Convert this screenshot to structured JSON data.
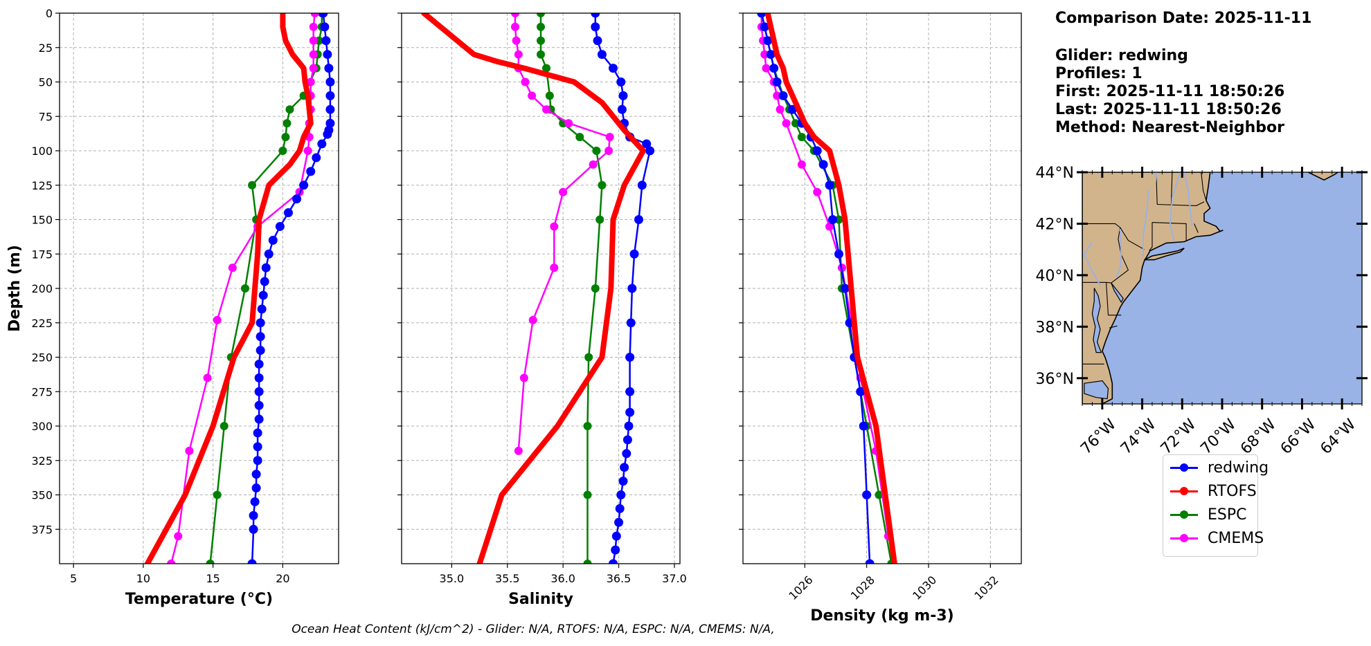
{
  "info": {
    "comparison_date": "Comparison Date: 2025-11-11",
    "glider": "Glider: redwing",
    "profiles": "Profiles: 1",
    "first": "First: 2025-11-11 18:50:26",
    "last": "Last: 2025-11-11 18:50:26",
    "method": "Method: Nearest-Neighbor"
  },
  "footer": "Ocean Heat Content (kJ/cm^2) - Glider: N/A,  RTOFS: N/A,  ESPC: N/A,  CMEMS: N/A,",
  "colors": {
    "redwing": "#0000ff",
    "RTOFS": "#ff0000",
    "ESPC": "#008000",
    "CMEMS": "#ff00ff",
    "land": "#d2b48c",
    "ocean": "#99b3e6",
    "grid": "#b0b0b0"
  },
  "legend": [
    "redwing",
    "RTOFS",
    "ESPC",
    "CMEMS"
  ],
  "map": {
    "lat_labels": [
      "44°N",
      "42°N",
      "40°N",
      "38°N",
      "36°N"
    ],
    "lon_labels": [
      "76°W",
      "74°W",
      "72°W",
      "70°W",
      "68°W",
      "66°W",
      "64°W"
    ],
    "lat_values": [
      44,
      42,
      40,
      38,
      36
    ],
    "lon_values": [
      -76,
      -74,
      -72,
      -70,
      -68,
      -66,
      -64
    ],
    "extent": {
      "lon_min": -77,
      "lon_max": -63,
      "lat_min": 35,
      "lat_max": 44
    }
  },
  "chart_data": [
    {
      "type": "line",
      "xlabel": "Temperature (°C)",
      "ylabel": "Depth (m)",
      "xlim": [
        4,
        24
      ],
      "ylim": [
        400,
        0
      ],
      "xticks": [
        "5",
        "10",
        "15",
        "20"
      ],
      "xtick_values": [
        5,
        10,
        15,
        20
      ],
      "yticks": [
        "0",
        "25",
        "50",
        "75",
        "100",
        "125",
        "150",
        "175",
        "200",
        "225",
        "250",
        "275",
        "300",
        "325",
        "350",
        "375"
      ],
      "ytick_values": [
        0,
        25,
        50,
        75,
        100,
        125,
        150,
        175,
        200,
        225,
        250,
        275,
        300,
        325,
        350,
        375
      ],
      "grid": true,
      "series": [
        {
          "name": "redwing",
          "x": [
            22.9,
            23.0,
            23.1,
            23.2,
            23.3,
            23.4,
            23.4,
            23.4,
            23.4,
            23.3,
            23.2,
            22.8,
            22.4,
            22.0,
            21.5,
            21.0,
            20.4,
            19.8,
            19.3,
            19.0,
            18.8,
            18.7,
            18.6,
            18.5,
            18.4,
            18.4,
            18.4,
            18.3,
            18.3,
            18.3,
            18.3,
            18.3,
            18.2,
            18.2,
            18.2,
            18.1,
            18.1,
            18.0,
            17.9,
            17.9,
            17.8
          ],
          "y": [
            0,
            10,
            20,
            30,
            40,
            50,
            60,
            70,
            80,
            85,
            88,
            95,
            105,
            115,
            125,
            135,
            145,
            155,
            165,
            175,
            185,
            195,
            205,
            215,
            225,
            235,
            245,
            255,
            265,
            275,
            285,
            295,
            305,
            315,
            325,
            335,
            345,
            355,
            365,
            375,
            400
          ]
        },
        {
          "name": "RTOFS",
          "x": [
            20.0,
            20.0,
            20.2,
            20.7,
            21.5,
            21.6,
            21.8,
            21.9,
            22.0,
            21.5,
            21.2,
            20.5,
            19.0,
            18.3,
            18.2,
            18.0,
            17.8,
            16.5,
            15.0,
            13.0,
            10.3
          ],
          "y": [
            0,
            10,
            20,
            30,
            40,
            50,
            60,
            70,
            80,
            90,
            100,
            110,
            125,
            150,
            175,
            200,
            225,
            250,
            300,
            350,
            400
          ]
        },
        {
          "name": "ESPC",
          "x": [
            22.8,
            22.8,
            22.6,
            22.5,
            22.4,
            21.5,
            20.5,
            20.3,
            20.2,
            20.0,
            17.8,
            18.1,
            17.3,
            16.3,
            15.8,
            15.3,
            14.8
          ],
          "y": [
            0,
            10,
            20,
            30,
            40,
            60,
            70,
            80,
            90,
            100,
            125,
            150,
            200,
            250,
            300,
            350,
            400
          ]
        },
        {
          "name": "CMEMS",
          "x": [
            22.3,
            22.2,
            22.2,
            22.2,
            22.2,
            22.0,
            22.0,
            22.0,
            21.9,
            21.9,
            21.8,
            21.2,
            18.2,
            16.4,
            15.3,
            14.6,
            13.3,
            12.5,
            12.0
          ],
          "y": [
            0,
            10,
            20,
            30,
            40,
            50,
            60,
            70,
            80,
            90,
            100,
            130,
            155,
            185,
            223,
            265,
            318,
            380,
            400
          ]
        }
      ]
    },
    {
      "type": "line",
      "xlabel": "Salinity",
      "xlim": [
        34.55,
        37.05
      ],
      "ylim": [
        400,
        0
      ],
      "xticks": [
        "35.0",
        "35.5",
        "36.0",
        "36.5",
        "37.0"
      ],
      "xtick_values": [
        35.0,
        35.5,
        36.0,
        36.5,
        37.0
      ],
      "grid": true,
      "series": [
        {
          "name": "redwing",
          "x": [
            36.29,
            36.29,
            36.31,
            36.35,
            36.45,
            36.52,
            36.54,
            36.53,
            36.55,
            36.6,
            36.75,
            36.78,
            36.71,
            36.68,
            36.64,
            36.62,
            36.61,
            36.6,
            36.6,
            36.6,
            36.59,
            36.58,
            36.57,
            36.55,
            36.54,
            36.52,
            36.51,
            36.5,
            36.48,
            36.47,
            36.45
          ],
          "y": [
            0,
            10,
            20,
            30,
            40,
            50,
            60,
            70,
            80,
            90,
            95,
            100,
            125,
            150,
            175,
            200,
            225,
            250,
            275,
            290,
            300,
            310,
            320,
            330,
            340,
            350,
            360,
            370,
            380,
            390,
            400
          ]
        },
        {
          "name": "RTOFS",
          "x": [
            34.75,
            34.9,
            35.05,
            35.2,
            35.4,
            35.65,
            36.1,
            36.35,
            36.55,
            36.72,
            36.55,
            36.45,
            36.43,
            36.35,
            35.95,
            35.45,
            35.25
          ],
          "y": [
            0,
            10,
            20,
            30,
            35,
            40,
            50,
            65,
            85,
            100,
            125,
            150,
            200,
            250,
            300,
            350,
            400
          ]
        },
        {
          "name": "ESPC",
          "x": [
            35.8,
            35.8,
            35.8,
            35.8,
            35.85,
            35.88,
            35.89,
            36.0,
            36.15,
            36.3,
            36.35,
            36.33,
            36.29,
            36.23,
            36.22,
            36.22,
            36.22
          ],
          "y": [
            0,
            10,
            20,
            30,
            40,
            60,
            70,
            80,
            90,
            100,
            125,
            150,
            200,
            250,
            300,
            350,
            400
          ]
        },
        {
          "name": "CMEMS",
          "x": [
            35.57,
            35.57,
            35.58,
            35.6,
            35.6,
            35.66,
            35.72,
            35.85,
            36.05,
            36.42,
            36.41,
            36.27,
            36.0,
            35.92,
            35.92,
            35.73,
            35.65,
            35.6
          ],
          "y": [
            0,
            10,
            20,
            30,
            40,
            50,
            60,
            70,
            80,
            90,
            100,
            110,
            130,
            155,
            185,
            223,
            265,
            318
          ]
        }
      ]
    },
    {
      "type": "line",
      "xlabel": "Density (kg m-3)",
      "xlim": [
        1024.0,
        1033.0
      ],
      "ylim": [
        400,
        0
      ],
      "xticks": [
        "1026",
        "1028",
        "1030",
        "1032"
      ],
      "xtick_values": [
        1026,
        1028,
        1030,
        1032
      ],
      "grid": true,
      "series": [
        {
          "name": "redwing",
          "x": [
            1024.6,
            1024.7,
            1024.8,
            1024.9,
            1025.0,
            1025.1,
            1025.3,
            1025.6,
            1025.9,
            1026.2,
            1026.4,
            1026.6,
            1026.8,
            1026.9,
            1027.1,
            1027.3,
            1027.45,
            1027.6,
            1027.8,
            1027.9,
            1028.0,
            1028.1
          ],
          "y": [
            0,
            10,
            20,
            30,
            40,
            50,
            60,
            70,
            80,
            90,
            100,
            110,
            125,
            150,
            175,
            200,
            225,
            250,
            275,
            300,
            350,
            400
          ]
        },
        {
          "name": "RTOFS",
          "x": [
            1024.8,
            1024.9,
            1025.0,
            1025.1,
            1025.3,
            1025.4,
            1025.6,
            1025.8,
            1026.0,
            1026.3,
            1026.8,
            1027.1,
            1027.3,
            1027.5,
            1027.7,
            1028.3,
            1028.9
          ],
          "y": [
            0,
            10,
            20,
            30,
            40,
            50,
            60,
            70,
            80,
            90,
            100,
            125,
            150,
            200,
            250,
            300,
            400
          ]
        },
        {
          "name": "ESPC",
          "x": [
            1024.6,
            1024.7,
            1024.8,
            1024.9,
            1025.0,
            1025.3,
            1025.5,
            1025.7,
            1025.9,
            1026.3,
            1026.9,
            1027.1,
            1027.2,
            1027.6,
            1028.0,
            1028.4,
            1028.8
          ],
          "y": [
            0,
            10,
            20,
            30,
            40,
            60,
            70,
            80,
            90,
            100,
            125,
            150,
            200,
            250,
            300,
            350,
            400
          ]
        },
        {
          "name": "CMEMS",
          "x": [
            1024.6,
            1024.6,
            1024.65,
            1024.7,
            1024.75,
            1025.0,
            1025.1,
            1025.2,
            1025.4,
            1025.9,
            1026.4,
            1026.8,
            1027.2,
            1027.5,
            1027.8,
            1028.3,
            1028.7
          ],
          "y": [
            0,
            10,
            20,
            30,
            40,
            50,
            60,
            70,
            80,
            110,
            130,
            155,
            185,
            223,
            265,
            318,
            380
          ]
        }
      ]
    }
  ]
}
